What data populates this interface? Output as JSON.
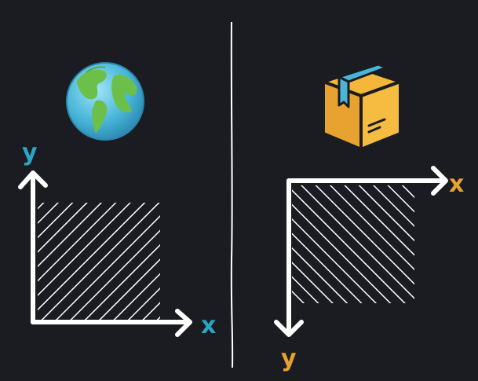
{
  "left_panel": {
    "icon": "globe-icon",
    "x_label": "x",
    "y_label": "y",
    "label_color": "#2aa6c4"
  },
  "right_panel": {
    "icon": "box-icon",
    "x_label": "x",
    "y_label": "y",
    "label_color": "#e8a230"
  },
  "colors": {
    "background": "#1b1c21",
    "stroke": "#ffffff"
  }
}
